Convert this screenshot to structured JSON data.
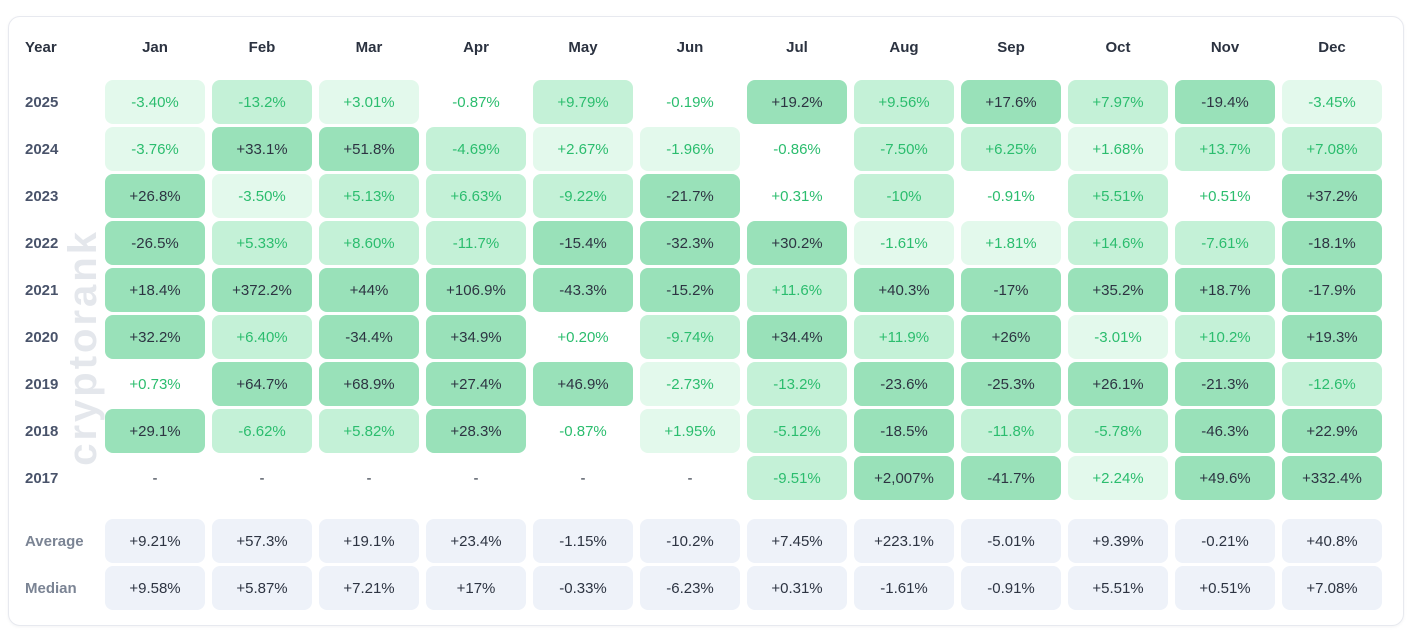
{
  "watermark": "cryptorank",
  "colors": {
    "green_text": "#2bbd6e",
    "red_text": "#ef4e59",
    "dark_text": "#2d3442",
    "green_bg_light": "#e3f9ec",
    "green_bg_mid": "#c4f1d7",
    "green_bg_strong": "#99e1b9",
    "red_bg_light": "#fcdfe3",
    "red_bg_mid": "#f9c5ca",
    "red_bg_strong": "#f7a5ac",
    "summary_bg": "#eef2f9",
    "watermark_color": "#e4e7ec"
  },
  "table": {
    "year_header": "Year",
    "months": [
      "Jan",
      "Feb",
      "Mar",
      "Apr",
      "May",
      "Jun",
      "Jul",
      "Aug",
      "Sep",
      "Oct",
      "Nov",
      "Dec"
    ],
    "rows": [
      {
        "label": "2025",
        "cells": [
          "-3.40%",
          "-13.2%",
          "+3.01%",
          "-0.87%",
          "+9.79%",
          "-0.19%",
          "+19.2%",
          "+9.56%",
          "+17.6%",
          "+7.97%",
          "-19.4%",
          "-3.45%"
        ]
      },
      {
        "label": "2024",
        "cells": [
          "-3.76%",
          "+33.1%",
          "+51.8%",
          "-4.69%",
          "+2.67%",
          "-1.96%",
          "-0.86%",
          "-7.50%",
          "+6.25%",
          "+1.68%",
          "+13.7%",
          "+7.08%"
        ]
      },
      {
        "label": "2023",
        "cells": [
          "+26.8%",
          "-3.50%",
          "+5.13%",
          "+6.63%",
          "-9.22%",
          "-21.7%",
          "+0.31%",
          "-10%",
          "-0.91%",
          "+5.51%",
          "+0.51%",
          "+37.2%"
        ]
      },
      {
        "label": "2022",
        "cells": [
          "-26.5%",
          "+5.33%",
          "+8.60%",
          "-11.7%",
          "-15.4%",
          "-32.3%",
          "+30.2%",
          "-1.61%",
          "+1.81%",
          "+14.6%",
          "-7.61%",
          "-18.1%"
        ]
      },
      {
        "label": "2021",
        "cells": [
          "+18.4%",
          "+372.2%",
          "+44%",
          "+106.9%",
          "-43.3%",
          "-15.2%",
          "+11.6%",
          "+40.3%",
          "-17%",
          "+35.2%",
          "+18.7%",
          "-17.9%"
        ]
      },
      {
        "label": "2020",
        "cells": [
          "+32.2%",
          "+6.40%",
          "-34.4%",
          "+34.9%",
          "+0.20%",
          "-9.74%",
          "+34.4%",
          "+11.9%",
          "+26%",
          "-3.01%",
          "+10.2%",
          "+19.3%"
        ]
      },
      {
        "label": "2019",
        "cells": [
          "+0.73%",
          "+64.7%",
          "+68.9%",
          "+27.4%",
          "+46.9%",
          "-2.73%",
          "-13.2%",
          "-23.6%",
          "-25.3%",
          "+26.1%",
          "-21.3%",
          "-12.6%"
        ]
      },
      {
        "label": "2018",
        "cells": [
          "+29.1%",
          "-6.62%",
          "+5.82%",
          "+28.3%",
          "-0.87%",
          "+1.95%",
          "-5.12%",
          "-18.5%",
          "-11.8%",
          "-5.78%",
          "-46.3%",
          "+22.9%"
        ]
      },
      {
        "label": "2017",
        "cells": [
          "-",
          "-",
          "-",
          "-",
          "-",
          "-",
          "-9.51%",
          "+2,007%",
          "-41.7%",
          "+2.24%",
          "+49.6%",
          "+332.4%"
        ]
      }
    ],
    "summary_rows": [
      {
        "label": "Average",
        "cells": [
          "+9.21%",
          "+57.3%",
          "+19.1%",
          "+23.4%",
          "-1.15%",
          "-10.2%",
          "+7.45%",
          "+223.1%",
          "-5.01%",
          "+9.39%",
          "-0.21%",
          "+40.8%"
        ]
      },
      {
        "label": "Median",
        "cells": [
          "+9.58%",
          "+5.87%",
          "+7.21%",
          "+17%",
          "-0.33%",
          "-6.23%",
          "+0.31%",
          "-1.61%",
          "-0.91%",
          "+5.51%",
          "+0.51%",
          "+7.08%"
        ]
      }
    ]
  },
  "chart_data": {
    "type": "heatmap",
    "columns": [
      "Jan",
      "Feb",
      "Mar",
      "Apr",
      "May",
      "Jun",
      "Jul",
      "Aug",
      "Sep",
      "Oct",
      "Nov",
      "Dec"
    ],
    "rows": [
      {
        "year": "2025",
        "values": [
          -3.4,
          -13.2,
          3.01,
          -0.87,
          9.79,
          -0.19,
          19.2,
          9.56,
          17.6,
          7.97,
          -19.4,
          -3.45
        ]
      },
      {
        "year": "2024",
        "values": [
          -3.76,
          33.1,
          51.8,
          -4.69,
          2.67,
          -1.96,
          -0.86,
          -7.5,
          6.25,
          1.68,
          13.7,
          7.08
        ]
      },
      {
        "year": "2023",
        "values": [
          26.8,
          -3.5,
          5.13,
          6.63,
          -9.22,
          -21.7,
          0.31,
          -10,
          -0.91,
          5.51,
          0.51,
          37.2
        ]
      },
      {
        "year": "2022",
        "values": [
          -26.5,
          5.33,
          8.6,
          -11.7,
          -15.4,
          -32.3,
          30.2,
          -1.61,
          1.81,
          14.6,
          -7.61,
          -18.1
        ]
      },
      {
        "year": "2021",
        "values": [
          18.4,
          372.2,
          44,
          106.9,
          -43.3,
          -15.2,
          11.6,
          40.3,
          -17,
          35.2,
          18.7,
          -17.9
        ]
      },
      {
        "year": "2020",
        "values": [
          32.2,
          6.4,
          -34.4,
          34.9,
          0.2,
          -9.74,
          34.4,
          11.9,
          26,
          -3.01,
          10.2,
          19.3
        ]
      },
      {
        "year": "2019",
        "values": [
          0.73,
          64.7,
          68.9,
          27.4,
          46.9,
          -2.73,
          -13.2,
          -23.6,
          -25.3,
          26.1,
          -21.3,
          -12.6
        ]
      },
      {
        "year": "2018",
        "values": [
          29.1,
          -6.62,
          5.82,
          28.3,
          -0.87,
          1.95,
          -5.12,
          -18.5,
          -11.8,
          -5.78,
          -46.3,
          22.9
        ]
      },
      {
        "year": "2017",
        "values": [
          null,
          null,
          null,
          null,
          null,
          null,
          -9.51,
          2007,
          -41.7,
          2.24,
          49.6,
          332.4
        ]
      }
    ],
    "summary": {
      "average": [
        9.21,
        57.3,
        19.1,
        23.4,
        -1.15,
        -10.2,
        7.45,
        223.1,
        -5.01,
        9.39,
        -0.21,
        40.8
      ],
      "median": [
        9.58,
        5.87,
        7.21,
        17,
        -0.33,
        -6.23,
        0.31,
        -1.61,
        -0.91,
        5.51,
        0.51,
        7.08
      ]
    },
    "value_unit": "%",
    "legend_position": "none",
    "grid": false
  }
}
